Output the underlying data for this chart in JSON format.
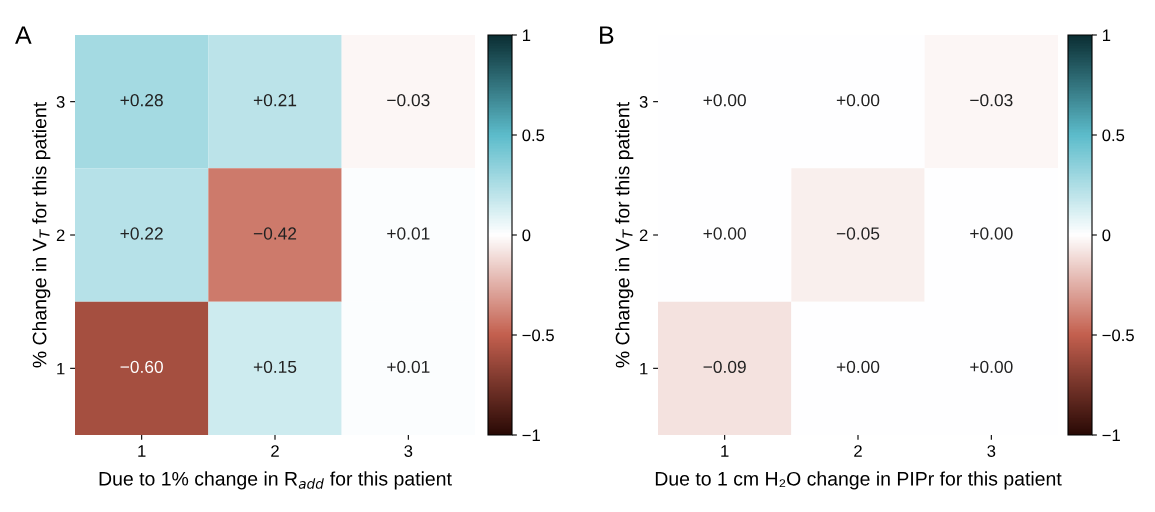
{
  "chart_data": [
    {
      "type": "heatmap",
      "title": "A",
      "xlabel": "Due to 1% change in R$_{add}$ for this patient",
      "ylabel": "% Change in V$_{T}$ for this patient",
      "categories": [
        "1",
        "2",
        "3"
      ],
      "y_categories": [
        "3",
        "2",
        "1"
      ],
      "cells": [
        [
          0.28,
          0.21,
          -0.03
        ],
        [
          0.22,
          -0.42,
          0.01
        ],
        [
          -0.6,
          0.15,
          0.01
        ]
      ],
      "cell_labels": [
        [
          "+0.28",
          "+0.21",
          "−0.03"
        ],
        [
          "+0.22",
          "−0.42",
          "+0.01"
        ],
        [
          "−0.60",
          "+0.15",
          "+0.01"
        ]
      ],
      "clim": [
        -1,
        1
      ],
      "cticks": [
        {
          "value": -1,
          "label": "−1"
        },
        {
          "value": -0.5,
          "label": "−0.5"
        },
        {
          "value": 0,
          "label": "0"
        },
        {
          "value": 0.5,
          "label": "0.5"
        },
        {
          "value": 1,
          "label": "1"
        }
      ]
    },
    {
      "type": "heatmap",
      "title": "B",
      "xlabel": "Due to 1 cm H₂O change in PIPr for this patient",
      "ylabel": "% Change in V$_{T}$ for this patient",
      "categories": [
        "1",
        "2",
        "3"
      ],
      "y_categories": [
        "3",
        "2",
        "1"
      ],
      "cells": [
        [
          0.0,
          0.0,
          -0.03
        ],
        [
          0.0,
          -0.05,
          0.0
        ],
        [
          -0.09,
          0.0,
          0.0
        ]
      ],
      "cell_labels": [
        [
          "+0.00",
          "+0.00",
          "−0.03"
        ],
        [
          "+0.00",
          "−0.05",
          "+0.00"
        ],
        [
          "−0.09",
          "+0.00",
          "+0.00"
        ]
      ],
      "clim": [
        -1,
        1
      ],
      "cticks": [
        {
          "value": -1,
          "label": "−1"
        },
        {
          "value": -0.5,
          "label": "−0.5"
        },
        {
          "value": 0,
          "label": "0"
        },
        {
          "value": 0.5,
          "label": "0.5"
        },
        {
          "value": 1,
          "label": "1"
        }
      ]
    }
  ]
}
